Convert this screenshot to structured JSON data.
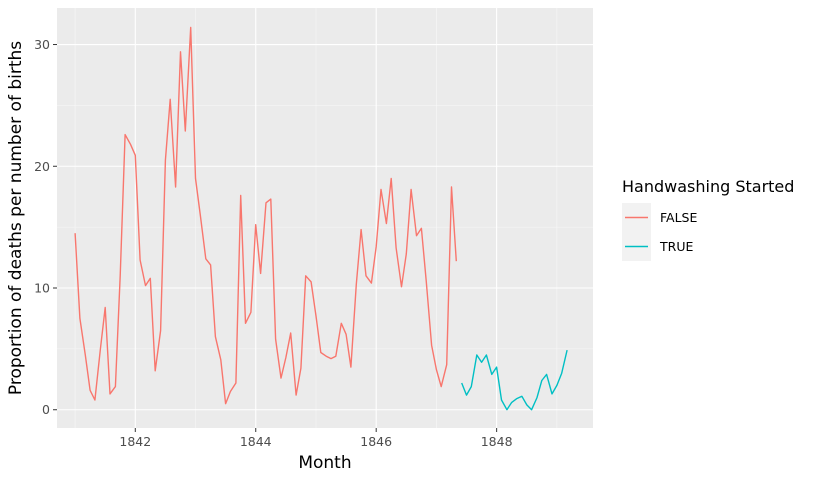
{
  "chart_data": {
    "type": "line",
    "title": "",
    "xlabel": "Month",
    "ylabel": "Proportion of deaths per number of births",
    "xlim": [
      1840.7,
      1849.6
    ],
    "ylim": [
      -1.5,
      33
    ],
    "x_ticks": [
      1842,
      1844,
      1846,
      1848
    ],
    "y_ticks": [
      0,
      10,
      20,
      30
    ],
    "grid": true,
    "legend": {
      "title": "Handwashing Started",
      "position": "right"
    },
    "series": [
      {
        "name": "FALSE",
        "color": "#F8766D",
        "points": [
          [
            1841.0,
            14.5
          ],
          [
            1841.08,
            7.5
          ],
          [
            1841.17,
            4.5
          ],
          [
            1841.25,
            1.6
          ],
          [
            1841.33,
            0.8
          ],
          [
            1841.42,
            5.0
          ],
          [
            1841.5,
            8.4
          ],
          [
            1841.58,
            1.3
          ],
          [
            1841.67,
            1.9
          ],
          [
            1841.75,
            11.0
          ],
          [
            1841.83,
            22.6
          ],
          [
            1841.92,
            21.8
          ],
          [
            1842.0,
            20.9
          ],
          [
            1842.08,
            12.3
          ],
          [
            1842.17,
            10.2
          ],
          [
            1842.25,
            10.8
          ],
          [
            1842.33,
            3.2
          ],
          [
            1842.42,
            6.5
          ],
          [
            1842.5,
            20.5
          ],
          [
            1842.58,
            25.5
          ],
          [
            1842.67,
            18.3
          ],
          [
            1842.75,
            29.4
          ],
          [
            1842.83,
            22.9
          ],
          [
            1842.92,
            31.4
          ],
          [
            1843.0,
            19.0
          ],
          [
            1843.08,
            16.0
          ],
          [
            1843.17,
            12.4
          ],
          [
            1843.25,
            11.9
          ],
          [
            1843.33,
            6.0
          ],
          [
            1843.42,
            4.1
          ],
          [
            1843.5,
            0.5
          ],
          [
            1843.58,
            1.5
          ],
          [
            1843.67,
            2.2
          ],
          [
            1843.75,
            17.6
          ],
          [
            1843.83,
            7.1
          ],
          [
            1843.92,
            8.0
          ],
          [
            1844.0,
            15.2
          ],
          [
            1844.08,
            11.2
          ],
          [
            1844.17,
            17.0
          ],
          [
            1844.25,
            17.3
          ],
          [
            1844.33,
            5.8
          ],
          [
            1844.42,
            2.6
          ],
          [
            1844.5,
            4.3
          ],
          [
            1844.58,
            6.3
          ],
          [
            1844.67,
            1.2
          ],
          [
            1844.75,
            3.4
          ],
          [
            1844.83,
            11.0
          ],
          [
            1844.92,
            10.5
          ],
          [
            1845.0,
            7.7
          ],
          [
            1845.08,
            4.7
          ],
          [
            1845.17,
            4.4
          ],
          [
            1845.25,
            4.2
          ],
          [
            1845.33,
            4.4
          ],
          [
            1845.42,
            7.1
          ],
          [
            1845.5,
            6.2
          ],
          [
            1845.58,
            3.5
          ],
          [
            1845.67,
            10.3
          ],
          [
            1845.75,
            14.8
          ],
          [
            1845.83,
            11.0
          ],
          [
            1845.92,
            10.4
          ],
          [
            1846.0,
            13.4
          ],
          [
            1846.08,
            18.1
          ],
          [
            1846.17,
            15.3
          ],
          [
            1846.25,
            19.0
          ],
          [
            1846.33,
            13.3
          ],
          [
            1846.42,
            10.1
          ],
          [
            1846.5,
            12.8
          ],
          [
            1846.58,
            18.1
          ],
          [
            1846.67,
            14.3
          ],
          [
            1846.75,
            14.9
          ],
          [
            1846.83,
            10.6
          ],
          [
            1846.92,
            5.3
          ],
          [
            1847.0,
            3.3
          ],
          [
            1847.08,
            1.9
          ],
          [
            1847.17,
            3.7
          ],
          [
            1847.25,
            18.3
          ],
          [
            1847.33,
            12.2
          ]
        ]
      },
      {
        "name": "TRUE",
        "color": "#00BFC4",
        "points": [
          [
            1847.42,
            2.2
          ],
          [
            1847.5,
            1.2
          ],
          [
            1847.58,
            1.9
          ],
          [
            1847.67,
            4.5
          ],
          [
            1847.75,
            3.9
          ],
          [
            1847.83,
            4.5
          ],
          [
            1847.92,
            2.9
          ],
          [
            1848.0,
            3.5
          ],
          [
            1848.08,
            0.8
          ],
          [
            1848.17,
            0.0
          ],
          [
            1848.25,
            0.6
          ],
          [
            1848.33,
            0.9
          ],
          [
            1848.42,
            1.1
          ],
          [
            1848.5,
            0.4
          ],
          [
            1848.58,
            0.0
          ],
          [
            1848.67,
            1.0
          ],
          [
            1848.75,
            2.4
          ],
          [
            1848.83,
            2.9
          ],
          [
            1848.92,
            1.3
          ],
          [
            1849.0,
            2.0
          ],
          [
            1849.08,
            3.0
          ],
          [
            1849.17,
            4.9
          ]
        ]
      }
    ]
  }
}
